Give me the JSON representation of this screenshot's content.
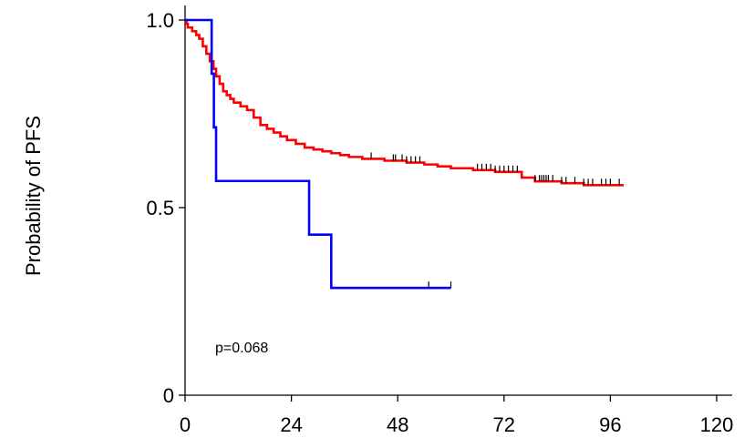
{
  "chart_data": {
    "type": "line",
    "title": "",
    "xlabel": "",
    "ylabel": "Probability of PFS",
    "xlim": [
      0,
      120
    ],
    "ylim": [
      0,
      1.0
    ],
    "x_ticks": [
      0,
      24,
      48,
      72,
      96,
      120
    ],
    "y_ticks": [
      {
        "value": 0,
        "label": "0"
      },
      {
        "value": 0.5,
        "label": "0.5"
      },
      {
        "value": 1.0,
        "label": "1.0"
      }
    ],
    "grid": false,
    "annotation": "p=0.068",
    "series": [
      {
        "color": "#ff0000",
        "step_x": [
          0,
          0.3,
          0.6,
          1,
          1.6,
          2.5,
          3.2,
          4,
          4.8,
          5.6,
          6.4,
          7,
          7.8,
          8.6,
          9.4,
          10.2,
          11,
          12.5,
          14,
          15.5,
          17,
          18.5,
          20,
          21.5,
          23,
          25,
          27,
          29,
          31,
          33,
          35,
          37,
          40,
          45,
          50,
          54,
          57,
          60,
          65,
          70,
          76,
          79,
          85,
          90,
          99
        ],
        "step_y": [
          1.0,
          0.99,
          0.98,
          0.98,
          0.97,
          0.96,
          0.95,
          0.93,
          0.91,
          0.89,
          0.87,
          0.85,
          0.83,
          0.81,
          0.8,
          0.79,
          0.78,
          0.77,
          0.76,
          0.74,
          0.72,
          0.71,
          0.7,
          0.69,
          0.68,
          0.67,
          0.66,
          0.655,
          0.65,
          0.645,
          0.64,
          0.635,
          0.63,
          0.625,
          0.62,
          0.615,
          0.61,
          0.605,
          0.6,
          0.595,
          0.58,
          0.57,
          0.565,
          0.56,
          0.56
        ],
        "censored_x": [
          42,
          47,
          47.5,
          49,
          50,
          51,
          52,
          53,
          66,
          67,
          68,
          69,
          70,
          71,
          72,
          73,
          74,
          75,
          79,
          80,
          80.5,
          81,
          81.5,
          82,
          83,
          85,
          86,
          88,
          90,
          91,
          92,
          94,
          95,
          96,
          98
        ]
      },
      {
        "color": "#0000ff",
        "step_x": [
          0,
          1,
          6,
          6.5,
          7,
          27,
          28,
          32,
          33,
          60
        ],
        "step_y": [
          1.0,
          1.0,
          0.857,
          0.714,
          0.571,
          0.571,
          0.428,
          0.428,
          0.286,
          0.286
        ],
        "censored_x": [
          55,
          60
        ]
      }
    ]
  }
}
